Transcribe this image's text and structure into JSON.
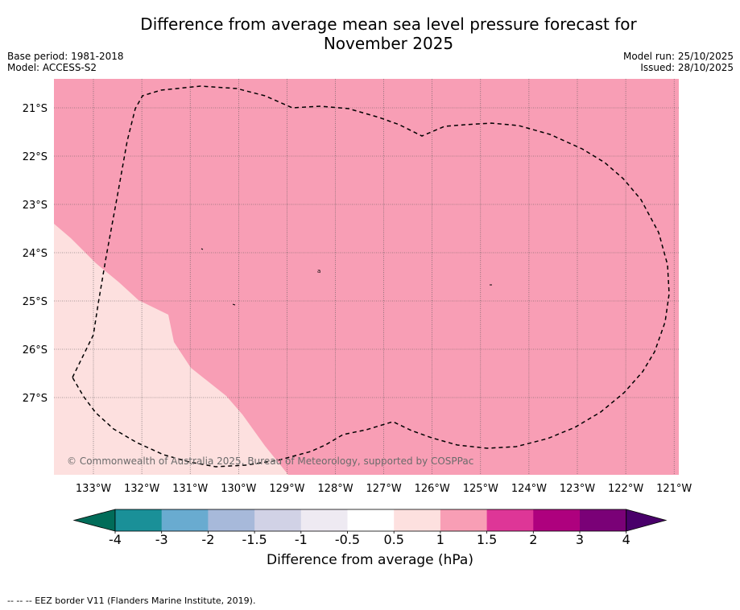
{
  "title": {
    "line1": "Difference from average mean sea level pressure forecast for",
    "line2": "November 2025"
  },
  "meta": {
    "base_period": "Base period: 1981-2018",
    "model": "Model: ACCESS-S2",
    "model_run": "Model run: 25/10/2025",
    "issued": "Issued: 28/10/2025"
  },
  "map": {
    "lat_labels": [
      "21°S",
      "22°S",
      "23°S",
      "24°S",
      "25°S",
      "26°S",
      "27°S"
    ],
    "lon_labels": [
      "133°W",
      "132°W",
      "131°W",
      "130°W",
      "129°W",
      "128°W",
      "127°W",
      "126°W",
      "125°W",
      "124°W",
      "123°W",
      "122°W",
      "121°W"
    ],
    "copyright": "© Commonwealth of Australia 2025, Bureau of Meteorology, supported by COSPPac",
    "colors": {
      "main_fill": "#f89eb5",
      "low_fill": "#fde0df",
      "grid": "#555555"
    }
  },
  "colorbar": {
    "label": "Difference from average (hPa)",
    "ticks": [
      "-4",
      "-3",
      "-2",
      "-1.5",
      "-1",
      "-0.5",
      "0.5",
      "1",
      "1.5",
      "2",
      "3",
      "4"
    ],
    "colors": [
      "#1a9098",
      "#69abd0",
      "#a7b9da",
      "#d1d2e6",
      "#eeeaf2",
      "#ffffff",
      "#fde0df",
      "#f89eb5",
      "#de3697",
      "#ae017e",
      "#7a0177"
    ],
    "under_color": "#016c59",
    "over_color": "#49006a"
  },
  "footer": "--  --  -- EEZ border V11 (Flanders Marine Institute, 2019)."
}
